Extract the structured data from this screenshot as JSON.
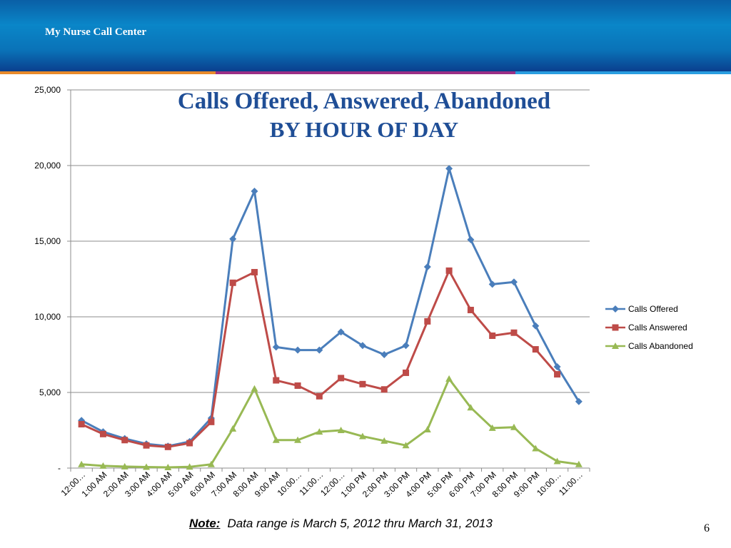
{
  "header": {
    "title": "My Nurse Call Center"
  },
  "footer": {
    "note_label": "Note:",
    "note_text": "Data range is March 5, 2012 thru March 31, 2013",
    "page_number": "6"
  },
  "colors": {
    "header_blue": "#0a73b8",
    "stripe_orange": "#e88a2a",
    "stripe_purple": "#9a2f86",
    "stripe_blue": "#2a9ee0"
  },
  "chart_data": {
    "type": "line",
    "title": "Calls Offered, Answered, Abandoned",
    "subtitle": "BY HOUR OF DAY",
    "ylim": [
      0,
      25000
    ],
    "y_ticks": [
      0,
      5000,
      10000,
      15000,
      20000,
      25000
    ],
    "y_tick_labels": [
      "-",
      "5,000",
      "10,000",
      "15,000",
      "20,000",
      "25,000"
    ],
    "grid": true,
    "legend_position": "right",
    "categories": [
      "12:00…",
      "1:00 AM",
      "2:00 AM",
      "3:00 AM",
      "4:00 AM",
      "5:00 AM",
      "6:00 AM",
      "7:00 AM",
      "8:00 AM",
      "9:00 AM",
      "10:00…",
      "11:00…",
      "12:00…",
      "1:00 PM",
      "2:00 PM",
      "3:00 PM",
      "4:00 PM",
      "5:00 PM",
      "6:00 PM",
      "7:00 PM",
      "8:00 PM",
      "9:00 PM",
      "10:00…",
      "11:00…"
    ],
    "series": [
      {
        "name": "Calls Offered",
        "color": "#4a7ebb",
        "marker": "diamond",
        "values": [
          3150,
          2400,
          1950,
          1600,
          1450,
          1750,
          3300,
          15150,
          18300,
          8000,
          7800,
          7800,
          9000,
          8100,
          7500,
          8100,
          13300,
          19800,
          15100,
          12150,
          12300,
          9400,
          6700,
          4400
        ]
      },
      {
        "name": "Calls Answered",
        "color": "#be4b48",
        "marker": "square",
        "values": [
          2900,
          2250,
          1850,
          1500,
          1400,
          1650,
          3050,
          12250,
          12950,
          5800,
          5450,
          4750,
          5950,
          5550,
          5200,
          6300,
          9700,
          13050,
          10450,
          8750,
          8950,
          7850,
          6200,
          null
        ]
      },
      {
        "name": "Calls Abandoned",
        "color": "#98b954",
        "marker": "triangle",
        "values": [
          250,
          150,
          100,
          70,
          50,
          80,
          250,
          2600,
          5250,
          1850,
          1850,
          2400,
          2500,
          2100,
          1800,
          1500,
          2550,
          5900,
          4000,
          2650,
          2700,
          1300,
          450,
          250
        ]
      }
    ]
  }
}
